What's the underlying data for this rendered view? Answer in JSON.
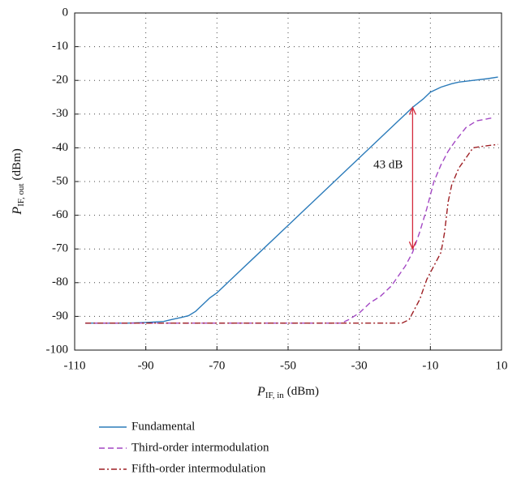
{
  "chart_data": {
    "type": "line",
    "xlabel": {
      "main": "P",
      "sub": "IF, in",
      "unit": "(dBm)"
    },
    "ylabel": {
      "main": "P",
      "sub": "IF, out",
      "unit": "(dBm)"
    },
    "xlim": [
      -110,
      10
    ],
    "ylim": [
      -100,
      0
    ],
    "xticks": [
      -110,
      -90,
      -70,
      -50,
      -30,
      -10,
      10
    ],
    "yticks": [
      0,
      -10,
      -20,
      -30,
      -40,
      -50,
      -60,
      -70,
      -80,
      -90,
      -100
    ],
    "grid": true,
    "legend": "below",
    "annotation": {
      "text": "43 dB",
      "x": -15,
      "y_top": -28,
      "y_bottom": -70,
      "color": "#d42a3c"
    },
    "series": [
      {
        "name": "Fundamental",
        "color": "#2b7bba",
        "dash": "solid",
        "x": [
          -107,
          -100,
          -95,
          -90,
          -85,
          -83,
          -80,
          -78,
          -76,
          -74,
          -72,
          -70,
          -68,
          -66,
          -63,
          -60,
          -50,
          -40,
          -30,
          -20,
          -15,
          -12,
          -10,
          -7,
          -4,
          -2,
          2,
          6,
          9
        ],
        "values": [
          -92,
          -92,
          -92,
          -91.8,
          -91.5,
          -91,
          -90.3,
          -89.8,
          -88.5,
          -86.5,
          -84.5,
          -83,
          -81,
          -79,
          -76,
          -73,
          -63,
          -53,
          -43,
          -33,
          -28,
          -25.5,
          -23.5,
          -22,
          -21,
          -20.5,
          -20,
          -19.5,
          -19
        ]
      },
      {
        "name": "Third-order intermodulation",
        "color": "#a347c4",
        "dash": "dashed",
        "x": [
          -107,
          -90,
          -70,
          -50,
          -35,
          -33,
          -30,
          -27,
          -24,
          -21,
          -19,
          -17,
          -15,
          -13,
          -11,
          -9,
          -7,
          -5,
          -3,
          0,
          3,
          8
        ],
        "values": [
          -92,
          -92,
          -92,
          -92,
          -92,
          -91,
          -89,
          -86,
          -84,
          -81,
          -78,
          -75,
          -71,
          -65,
          -58,
          -50,
          -45,
          -41,
          -38,
          -34,
          -32,
          -31
        ]
      },
      {
        "name": "Fifth-order intermodulation",
        "color": "#9e1f24",
        "dash": "dashdot",
        "x": [
          -107,
          -90,
          -70,
          -50,
          -30,
          -18,
          -16,
          -15,
          -13,
          -11,
          -9,
          -7,
          -6,
          -5,
          -4,
          -2,
          0,
          2,
          5,
          9
        ],
        "values": [
          -92,
          -92,
          -92,
          -92,
          -92,
          -92,
          -91,
          -89,
          -85,
          -79,
          -75,
          -71,
          -65,
          -56,
          -51,
          -46,
          -43,
          -40,
          -39.5,
          -39
        ]
      }
    ]
  }
}
